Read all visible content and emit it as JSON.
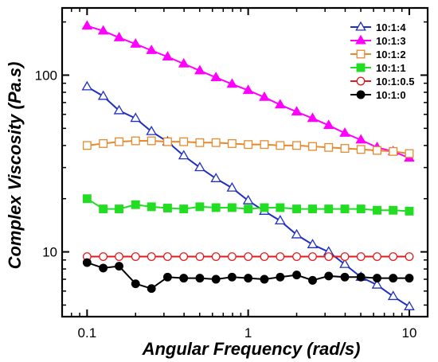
{
  "chart_data": {
    "type": "line",
    "title": "",
    "xlabel": "Angular Frequency (rad/s)",
    "ylabel": "Complex Viscosity (Pa.s)",
    "x_scale": "log",
    "y_scale": "log",
    "xlim": [
      0.07,
      13
    ],
    "ylim": [
      4.3,
      240
    ],
    "x_ticks": [
      {
        "value": 0.1,
        "label": "0.1"
      },
      {
        "value": 1,
        "label": "1"
      },
      {
        "value": 10,
        "label": "10"
      }
    ],
    "y_ticks": [
      {
        "value": 10,
        "label": "10"
      },
      {
        "value": 100,
        "label": "100"
      }
    ],
    "grid": false,
    "legend_position": "top-right",
    "x": [
      0.1,
      0.126,
      0.158,
      0.2,
      0.251,
      0.316,
      0.398,
      0.501,
      0.631,
      0.794,
      1.0,
      1.26,
      1.58,
      2.0,
      2.51,
      3.16,
      3.98,
      5.01,
      6.31,
      7.94,
      10.0
    ],
    "series": [
      {
        "name": "10:1:4",
        "color": "#1f2fbf",
        "marker": "open-triangle",
        "values": [
          86,
          76,
          63,
          57,
          48,
          42,
          35,
          30,
          26,
          23,
          19.5,
          17,
          15,
          12.5,
          11,
          10,
          8.5,
          7.2,
          6.5,
          5.6,
          4.9
        ]
      },
      {
        "name": "10:1:3",
        "color": "#ff00ff",
        "marker": "filled-triangle",
        "values": [
          190,
          178,
          163,
          150,
          138,
          127,
          116,
          106,
          97,
          89,
          82,
          75,
          68,
          62,
          57,
          52,
          47,
          43,
          39,
          37,
          34
        ]
      },
      {
        "name": "10:1:2",
        "color": "#e8892b",
        "marker": "open-square",
        "values": [
          40,
          41,
          42,
          42.5,
          42.5,
          42,
          42,
          41.5,
          41.5,
          41,
          40.5,
          40.5,
          40,
          40,
          39.5,
          39,
          38.5,
          38,
          37.5,
          37,
          36
        ]
      },
      {
        "name": "10:1:1",
        "color": "#22dd22",
        "marker": "filled-square",
        "values": [
          20,
          17.5,
          17.5,
          18.5,
          18,
          17.7,
          17.5,
          18,
          17.8,
          17.8,
          17.5,
          17.8,
          17.8,
          17.5,
          17.5,
          17.5,
          17.5,
          17.5,
          17.2,
          17.2,
          17
        ]
      },
      {
        "name": "10:1:0.5",
        "color": "#e31a1c",
        "marker": "open-circle",
        "values": [
          9.4,
          9.4,
          9.4,
          9.4,
          9.4,
          9.4,
          9.4,
          9.4,
          9.4,
          9.4,
          9.4,
          9.4,
          9.4,
          9.4,
          9.4,
          9.4,
          9.4,
          9.4,
          9.4,
          9.4,
          9.4
        ]
      },
      {
        "name": "10:1:0",
        "color": "#000000",
        "marker": "filled-circle",
        "values": [
          8.7,
          8.1,
          8.3,
          6.6,
          6.2,
          7.2,
          7.1,
          7.1,
          7.0,
          7.2,
          7.1,
          7.0,
          7.2,
          7.4,
          6.9,
          7.3,
          7.2,
          7.2,
          7.1,
          7.1,
          7.1
        ]
      }
    ]
  }
}
